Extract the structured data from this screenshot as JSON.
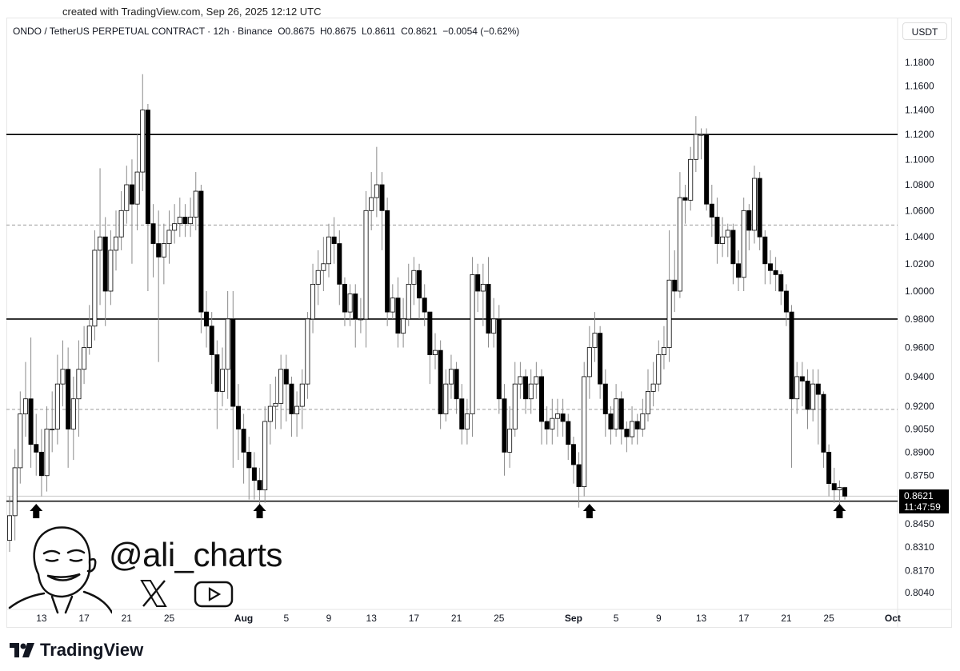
{
  "watermark_top": "created with TradingView.com, Sep 26, 2025 12:12 UTC",
  "legend": {
    "symbol": "ONDO / TetherUS PERPETUAL CONTRACT · 12h · Binance",
    "open": "O0.8675",
    "high": "H0.8675",
    "low": "L0.8611",
    "close": "C0.8621",
    "change": "−0.0054 (−0.62%)"
  },
  "price_unit": "USDT",
  "last_price": {
    "value": "0.8621",
    "countdown": "11:47:59"
  },
  "branding": {
    "handle": "@ali_charts",
    "icons": [
      "x-logo-icon",
      "youtube-icon"
    ],
    "footer_logo": "TradingView"
  },
  "colors": {
    "up_body": "#ffffff",
    "down_body": "#000000",
    "wick": "#8a8a8a",
    "line": "#000000",
    "dashed": "#9a9a9a",
    "label_bg": "#000000"
  },
  "chart_data": {
    "type": "candlestick",
    "interval": "12h",
    "y_scale": "log",
    "ylim": [
      0.795,
      1.19
    ],
    "first_candle": "2025-07-10T00:00",
    "first_open": 0.835,
    "close": [
      0.85,
      0.88,
      0.915,
      0.925,
      0.895,
      0.89,
      0.875,
      0.905,
      0.905,
      0.935,
      0.945,
      0.905,
      0.925,
      0.945,
      0.96,
      0.975,
      1.03,
      1.04,
      1.0,
      1.03,
      1.04,
      1.06,
      1.08,
      1.065,
      1.09,
      1.14,
      1.05,
      1.035,
      1.025,
      1.035,
      1.045,
      1.05,
      1.055,
      1.05,
      1.055,
      1.075,
      0.985,
      0.975,
      0.955,
      0.93,
      0.945,
      0.98,
      0.92,
      0.905,
      0.89,
      0.88,
      0.872,
      0.866,
      0.91,
      0.92,
      0.922,
      0.945,
      0.935,
      0.915,
      0.92,
      0.935,
      0.98,
      1.005,
      1.015,
      1.02,
      1.04,
      1.035,
      1.005,
      0.985,
      0.998,
      0.98,
      0.98,
      1.06,
      1.07,
      1.08,
      1.06,
      0.985,
      0.995,
      0.97,
      0.98,
      1.005,
      1.015,
      0.995,
      0.985,
      0.955,
      0.958,
      0.915,
      0.935,
      0.945,
      0.925,
      0.905,
      0.915,
      1.012,
      1.0,
      1.005,
      0.97,
      0.98,
      0.925,
      0.89,
      0.905,
      0.935,
      0.94,
      0.925,
      0.935,
      0.94,
      0.91,
      0.905,
      0.912,
      0.915,
      0.91,
      0.895,
      0.882,
      0.868,
      0.94,
      0.96,
      0.97,
      0.935,
      0.915,
      0.905,
      0.925,
      0.905,
      0.9,
      0.91,
      0.905,
      0.915,
      0.93,
      0.935,
      0.955,
      0.96,
      1.008,
      1.0,
      1.07,
      1.068,
      1.1,
      1.12,
      1.12,
      1.065,
      1.055,
      1.035,
      1.04,
      1.045,
      1.02,
      1.01,
      1.06,
      1.045,
      1.085,
      1.04,
      1.02,
      1.015,
      1.012,
      1.0,
      0.985,
      0.925,
      0.94,
      0.937,
      0.918,
      0.935,
      0.928,
      0.89,
      0.87,
      0.866,
      0.8675,
      0.8621
    ],
    "high": [
      0.862,
      0.892,
      0.93,
      0.95,
      0.967,
      0.915,
      0.905,
      0.92,
      0.93,
      0.955,
      0.965,
      0.96,
      0.94,
      0.965,
      0.975,
      0.99,
      1.045,
      1.093,
      1.055,
      1.045,
      1.06,
      1.075,
      1.095,
      1.1,
      1.12,
      1.17,
      1.145,
      1.065,
      1.06,
      1.05,
      1.06,
      1.065,
      1.07,
      1.065,
      1.07,
      1.09,
      1.08,
      1.0,
      0.985,
      0.965,
      0.96,
      1.0,
      1.0,
      0.935,
      0.915,
      0.9,
      0.89,
      0.88,
      0.92,
      0.935,
      0.94,
      0.955,
      0.955,
      0.94,
      0.93,
      0.945,
      0.985,
      1.02,
      1.03,
      1.04,
      1.05,
      1.055,
      1.045,
      1.01,
      1.005,
      1.005,
      0.995,
      1.075,
      1.09,
      1.11,
      1.09,
      1.07,
      1.005,
      1.01,
      0.995,
      1.02,
      1.025,
      1.02,
      1.005,
      0.985,
      0.97,
      0.965,
      0.945,
      0.955,
      0.95,
      0.935,
      0.925,
      1.025,
      1.02,
      1.02,
      1.025,
      0.995,
      0.99,
      0.935,
      0.92,
      0.95,
      0.95,
      0.945,
      0.945,
      0.95,
      0.945,
      0.92,
      0.925,
      0.925,
      0.925,
      0.915,
      0.9,
      0.89,
      0.95,
      0.975,
      0.985,
      0.975,
      0.945,
      0.92,
      0.935,
      0.93,
      0.91,
      0.92,
      0.915,
      0.925,
      0.945,
      0.95,
      0.965,
      0.975,
      1.045,
      1.03,
      1.09,
      1.08,
      1.11,
      1.135,
      1.125,
      1.125,
      1.08,
      1.07,
      1.055,
      1.05,
      1.05,
      1.03,
      1.07,
      1.065,
      1.095,
      1.09,
      1.045,
      1.03,
      1.025,
      1.015,
      1.005,
      0.99,
      0.95,
      0.95,
      0.945,
      0.945,
      0.945,
      0.93,
      0.895,
      0.88,
      0.872,
      0.868
    ],
    "low": [
      0.828,
      0.835,
      0.87,
      0.9,
      0.88,
      0.875,
      0.862,
      0.865,
      0.89,
      0.895,
      0.92,
      0.88,
      0.885,
      0.9,
      0.935,
      0.955,
      0.965,
      0.99,
      0.975,
      0.99,
      1.015,
      1.03,
      1.05,
      1.02,
      1.045,
      1.075,
      1.0,
      1.01,
      0.95,
      1.005,
      1.02,
      1.035,
      1.04,
      1.04,
      1.04,
      1.045,
      0.97,
      0.96,
      0.935,
      0.905,
      0.92,
      0.925,
      0.88,
      0.885,
      0.87,
      0.86,
      0.86,
      0.852,
      0.858,
      0.895,
      0.905,
      0.905,
      0.91,
      0.9,
      0.9,
      0.905,
      0.925,
      0.97,
      0.99,
      1.0,
      1.01,
      1.02,
      0.99,
      0.975,
      0.975,
      0.96,
      0.97,
      0.96,
      1.045,
      1.055,
      1.03,
      0.975,
      0.98,
      0.96,
      0.96,
      0.975,
      0.99,
      0.98,
      0.975,
      0.935,
      0.945,
      0.905,
      0.91,
      0.925,
      0.915,
      0.895,
      0.895,
      0.9,
      0.985,
      0.975,
      0.96,
      0.96,
      0.915,
      0.875,
      0.88,
      0.9,
      0.925,
      0.915,
      0.915,
      0.925,
      0.895,
      0.895,
      0.895,
      0.9,
      0.9,
      0.885,
      0.87,
      0.855,
      0.862,
      0.925,
      0.95,
      0.925,
      0.9,
      0.895,
      0.9,
      0.895,
      0.89,
      0.895,
      0.895,
      0.9,
      0.91,
      0.92,
      0.93,
      0.945,
      0.95,
      0.985,
      0.995,
      1.05,
      1.06,
      1.09,
      1.1,
      1.06,
      1.04,
      1.02,
      1.025,
      1.025,
      1.005,
      1.0,
      1.0,
      1.03,
      1.035,
      1.03,
      1.005,
      1.005,
      1.0,
      0.99,
      0.975,
      0.88,
      0.915,
      0.92,
      0.905,
      0.91,
      0.895,
      0.88,
      0.862,
      0.858,
      0.857,
      0.86
    ],
    "y_ticks": [
      "1.1800",
      "1.1600",
      "1.1400",
      "1.1200",
      "1.1000",
      "1.0800",
      "1.0600",
      "1.0400",
      "1.0200",
      "1.0000",
      "0.9800",
      "0.9600",
      "0.9400",
      "0.9200",
      "0.9050",
      "0.8900",
      "0.8750",
      "0.8450",
      "0.8310",
      "0.8170",
      "0.8040"
    ],
    "x_ticks": [
      {
        "label": "13",
        "date": "2025-07-13"
      },
      {
        "label": "17",
        "date": "2025-07-17"
      },
      {
        "label": "21",
        "date": "2025-07-21"
      },
      {
        "label": "25",
        "date": "2025-07-25"
      },
      {
        "label": "Aug",
        "date": "2025-08-01",
        "bold": true
      },
      {
        "label": "5",
        "date": "2025-08-05"
      },
      {
        "label": "9",
        "date": "2025-08-09"
      },
      {
        "label": "13",
        "date": "2025-08-13"
      },
      {
        "label": "17",
        "date": "2025-08-17"
      },
      {
        "label": "21",
        "date": "2025-08-21"
      },
      {
        "label": "25",
        "date": "2025-08-25"
      },
      {
        "label": "Sep",
        "date": "2025-09-01",
        "bold": true
      },
      {
        "label": "5",
        "date": "2025-09-05"
      },
      {
        "label": "9",
        "date": "2025-09-09"
      },
      {
        "label": "13",
        "date": "2025-09-13"
      },
      {
        "label": "17",
        "date": "2025-09-17"
      },
      {
        "label": "21",
        "date": "2025-09-21"
      },
      {
        "label": "25",
        "date": "2025-09-25"
      },
      {
        "label": "Oct",
        "date": "2025-10-01",
        "bold": true
      }
    ],
    "horizontal_lines": [
      {
        "price": 1.12,
        "style": "solid"
      },
      {
        "price": 1.049,
        "style": "dashed"
      },
      {
        "price": 0.98,
        "style": "solid"
      },
      {
        "price": 0.918,
        "style": "dashed"
      },
      {
        "price": 0.859,
        "style": "solid"
      }
    ],
    "arrows_up": [
      "2025-07-12T12:00",
      "2025-08-02T12:00",
      "2025-09-02T12:00",
      "2025-09-26T00:00"
    ]
  }
}
